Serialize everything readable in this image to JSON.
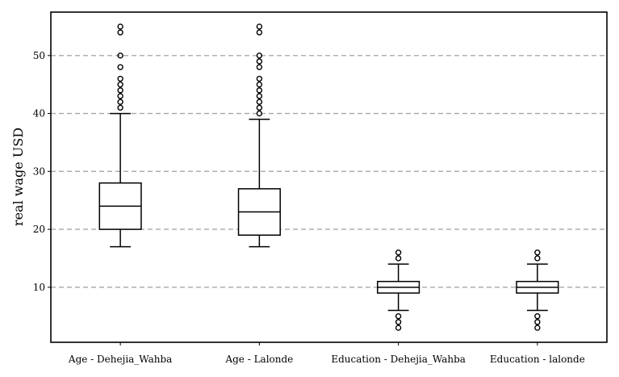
{
  "chart_data": {
    "type": "boxplot",
    "title": "",
    "xlabel": "",
    "ylabel": "real wage USD",
    "ylim": [
      0.5,
      57.5
    ],
    "yticks": [
      10,
      20,
      30,
      40,
      50
    ],
    "grid": "horizontal-dashed",
    "categories": [
      "Age - Dehejia_Wahba",
      "Age - Lalonde",
      "Education - Dehejia_Wahba",
      "Education - lalonde"
    ],
    "boxes": [
      {
        "whisker_low": 17,
        "q1": 20,
        "median": 24,
        "q3": 28,
        "whisker_high": 40,
        "outliers": [
          41,
          42,
          43,
          44,
          45,
          46,
          48,
          50,
          54,
          55
        ]
      },
      {
        "whisker_low": 17,
        "q1": 19,
        "median": 23,
        "q3": 27,
        "whisker_high": 39,
        "outliers": [
          40,
          41,
          42,
          43,
          44,
          45,
          46,
          48,
          49,
          50,
          54,
          55
        ]
      },
      {
        "whisker_low": 6,
        "q1": 9,
        "median": 10,
        "q3": 11,
        "whisker_high": 14,
        "outliers": [
          3,
          4,
          5,
          15,
          16
        ]
      },
      {
        "whisker_low": 6,
        "q1": 9,
        "median": 10,
        "q3": 11,
        "whisker_high": 14,
        "outliers": [
          3,
          4,
          5,
          15,
          16
        ]
      }
    ]
  }
}
